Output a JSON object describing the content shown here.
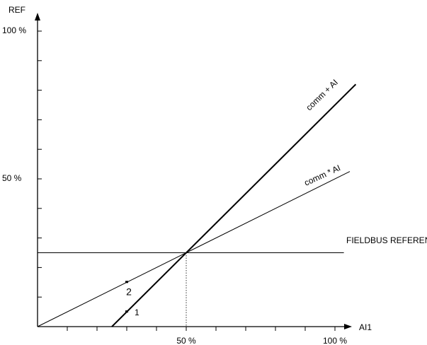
{
  "chart_data": {
    "type": "line",
    "xlabel": "AI1",
    "ylabel": "REF",
    "xlim": [
      0,
      100
    ],
    "ylim": [
      0,
      100
    ],
    "grid": false,
    "x_tick_labels": [
      {
        "value": 50,
        "label": "50 %"
      },
      {
        "value": 100,
        "label": "100 %"
      }
    ],
    "y_tick_labels": [
      {
        "value": 50,
        "label": "50 %"
      },
      {
        "value": 100,
        "label": "100 %"
      }
    ],
    "x_minor_ticks": [
      10,
      20,
      30,
      40,
      50,
      60,
      70,
      80,
      90,
      100
    ],
    "y_minor_ticks": [
      10,
      20,
      30,
      40,
      50,
      60,
      70,
      80,
      90,
      100
    ],
    "series": [
      {
        "name": "FIELDBUS REFERENCE",
        "style": "thin",
        "x": [
          0,
          103
        ],
        "y": [
          25,
          25
        ]
      },
      {
        "name": "comm * AI",
        "style": "thin",
        "x": [
          0,
          50,
          105
        ],
        "y": [
          0,
          25,
          52.5
        ]
      },
      {
        "name": "comm + AI",
        "style": "thick",
        "x": [
          25,
          50,
          107
        ],
        "y": [
          0,
          25,
          82
        ]
      }
    ],
    "reference_line": {
      "x": 50,
      "y": 25,
      "style": "dotted"
    },
    "annotations": [
      {
        "label": "1",
        "x": 30,
        "y": 5
      },
      {
        "label": "2",
        "x": 30,
        "y": 15
      }
    ]
  }
}
